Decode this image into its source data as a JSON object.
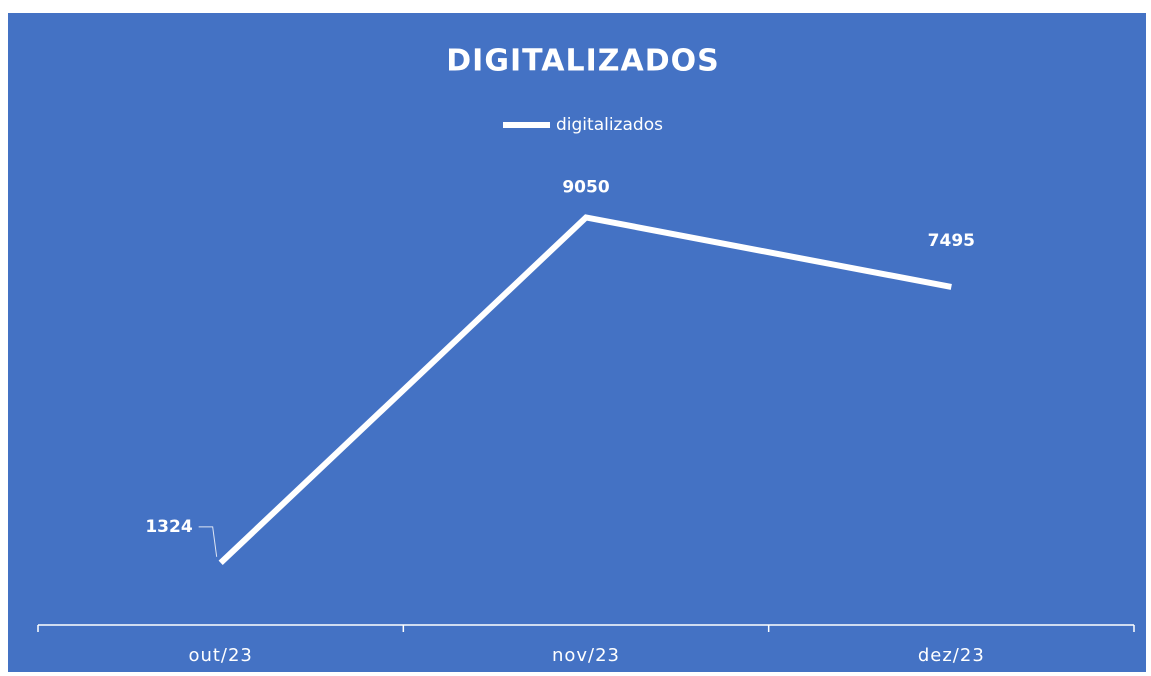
{
  "chart_data": {
    "type": "line",
    "title": "DIGITALIZADOS",
    "categories": [
      "out/23",
      "nov/23",
      "dez/23"
    ],
    "series": [
      {
        "name": "digitalizados",
        "color": "#ffffff",
        "values": [
          1324,
          9050,
          7495
        ]
      }
    ],
    "ylim": [
      0,
      10000
    ],
    "legend": "top"
  }
}
